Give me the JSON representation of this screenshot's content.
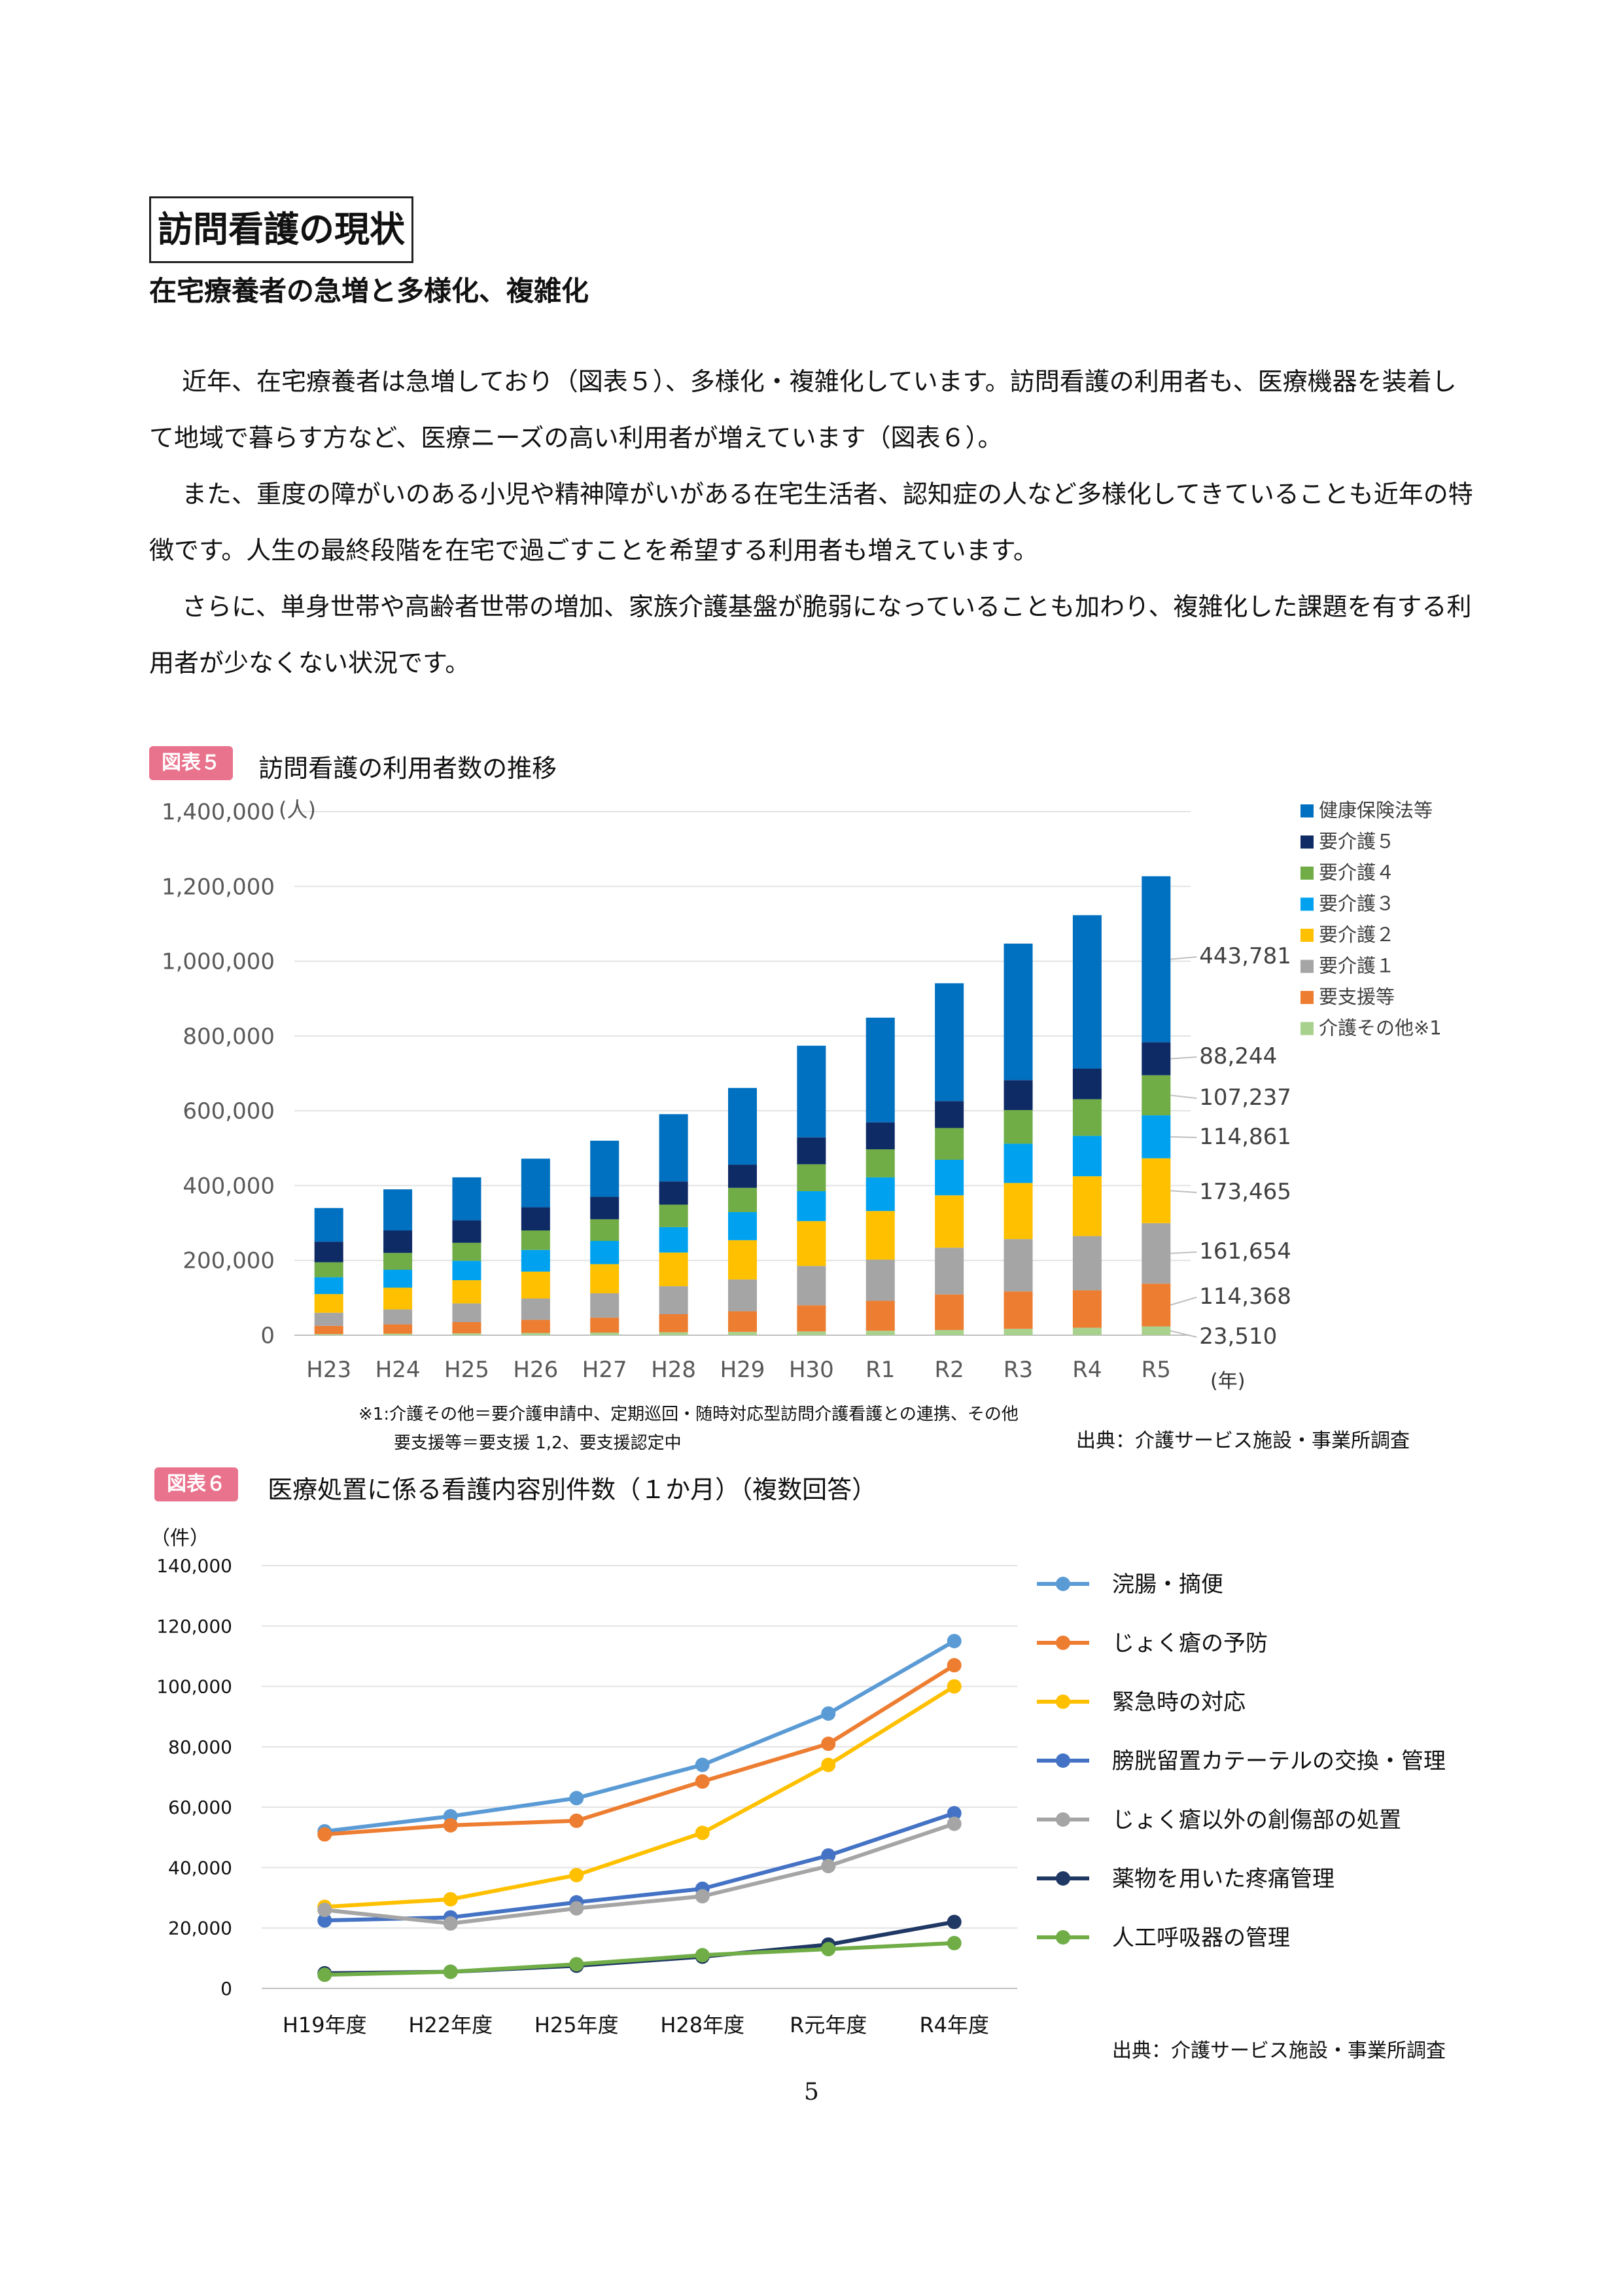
{
  "heading": {
    "title": "訪問看護の現状",
    "subtitle": "在宅療養者の急増と多様化、複雑化"
  },
  "paragraphs": [
    "近年、在宅療養者は急増しており（図表５）、多様化・複雑化しています。訪問看護の利用者も、医療機器を装着して地域で暮らす方など、医療ニーズの高い利用者が増えています（図表６）。",
    "また、重度の障がいのある小児や精神障がいがある在宅生活者、認知症の人など多様化してきていることも近年の特徴です。人生の最終段階を在宅で過ごすことを希望する利用者も増えています。",
    "さらに、単身世帯や高齢者世帯の増加、家族介護基盤が脆弱になっていることも加わり、複雑化した課題を有する利用者が少なくない状況です。"
  ],
  "figure5": {
    "label": "図表５",
    "caption": "訪問看護の利用者数の推移",
    "note1": "※1:介護その他＝要介護申請中、定期巡回・随時対応型訪問介護看護との連携、その他",
    "note2": "要支援等＝要支援 1,2、要支援認定中",
    "source": "出典：介護サービス施設・事業所調査"
  },
  "figure6": {
    "label": "図表６",
    "caption": "医療処置に係る看護内容別件数（１か月）（複数回答）",
    "source": "出典：介護サービス施設・事業所調査"
  },
  "page_number": "5",
  "chart_data": [
    {
      "type": "bar",
      "stacked": true,
      "y_unit": "(人)",
      "x_unit": "(年)",
      "ylim": [
        0,
        1400000
      ],
      "yticks": [
        "0",
        "200,000",
        "400,000",
        "600,000",
        "800,000",
        "1,000,000",
        "1,200,000",
        "1,400,000"
      ],
      "grid": true,
      "legend_position": "right",
      "categories": [
        "H23",
        "H24",
        "H25",
        "H26",
        "H27",
        "H28",
        "H29",
        "H30",
        "R1",
        "R2",
        "R3",
        "R4",
        "R5"
      ],
      "series": [
        {
          "name": "介護その他※1",
          "color": "#a9d18e",
          "values": [
            3000,
            4000,
            5000,
            6000,
            7000,
            8000,
            9000,
            10000,
            12000,
            14000,
            17000,
            20000,
            23510
          ]
        },
        {
          "name": "要支援等",
          "color": "#ed7d31",
          "values": [
            22000,
            25000,
            30000,
            35000,
            40000,
            48000,
            55000,
            70000,
            80000,
            95000,
            100000,
            100000,
            114368
          ]
        },
        {
          "name": "要介護１",
          "color": "#a5a5a5",
          "values": [
            35000,
            40000,
            50000,
            57000,
            65000,
            75000,
            85000,
            105000,
            110000,
            125000,
            140000,
            145000,
            161654
          ]
        },
        {
          "name": "要介護２",
          "color": "#ffc000",
          "values": [
            50000,
            58000,
            62000,
            72000,
            78000,
            90000,
            105000,
            120000,
            130000,
            140000,
            150000,
            160000,
            173465
          ]
        },
        {
          "name": "要介護３",
          "color": "#00a2f0",
          "values": [
            45000,
            48000,
            52000,
            58000,
            62000,
            68000,
            75000,
            80000,
            90000,
            95000,
            105000,
            108000,
            114861
          ]
        },
        {
          "name": "要介護４",
          "color": "#70ad47",
          "values": [
            40000,
            45000,
            48000,
            52000,
            58000,
            60000,
            65000,
            72000,
            75000,
            85000,
            90000,
            98000,
            107237
          ]
        },
        {
          "name": "要介護５",
          "color": "#0f2b66",
          "values": [
            55000,
            60000,
            60000,
            62000,
            60000,
            62000,
            62000,
            72000,
            72000,
            72000,
            80000,
            82000,
            88244
          ]
        },
        {
          "name": "健康保険法等",
          "color": "#0070c0",
          "values": [
            90000,
            110000,
            115000,
            130000,
            150000,
            180000,
            205000,
            245000,
            280000,
            315000,
            365000,
            410000,
            443781
          ]
        }
      ],
      "data_labels": [
        "443,781",
        "88,244",
        "107,237",
        "114,861",
        "173,465",
        "161,654",
        "114,368",
        "23,510"
      ]
    },
    {
      "type": "line",
      "y_unit": "（件）",
      "ylim": [
        0,
        140000
      ],
      "yticks": [
        "0",
        "20,000",
        "40,000",
        "60,000",
        "80,000",
        "100,000",
        "120,000",
        "140,000"
      ],
      "grid": true,
      "legend_position": "right",
      "x": [
        "H19年度",
        "H22年度",
        "H25年度",
        "H28年度",
        "R元年度",
        "R4年度"
      ],
      "series": [
        {
          "name": "浣腸・摘便",
          "color": "#5b9bd5",
          "values": [
            52000,
            57000,
            63000,
            74000,
            91000,
            115000
          ]
        },
        {
          "name": "じょく瘡の予防",
          "color": "#ed7d31",
          "values": [
            51000,
            54000,
            55500,
            68500,
            81000,
            107000
          ]
        },
        {
          "name": "緊急時の対応",
          "color": "#ffc000",
          "values": [
            27000,
            29500,
            37500,
            51500,
            74000,
            100000
          ]
        },
        {
          "name": "膀胱留置カテーテルの交換・管理",
          "color": "#4472c4",
          "values": [
            22500,
            23500,
            28500,
            33000,
            44000,
            58000
          ]
        },
        {
          "name": "じょく瘡以外の創傷部の処置",
          "color": "#a5a5a5",
          "values": [
            26000,
            21500,
            26500,
            30500,
            40500,
            54500
          ]
        },
        {
          "name": "薬物を用いた疼痛管理",
          "color": "#1f3864",
          "values": [
            5000,
            5500,
            7500,
            10500,
            14500,
            22000
          ]
        },
        {
          "name": "人工呼吸器の管理",
          "color": "#70ad47",
          "values": [
            4500,
            5500,
            8000,
            11000,
            13000,
            15000
          ]
        }
      ]
    }
  ]
}
